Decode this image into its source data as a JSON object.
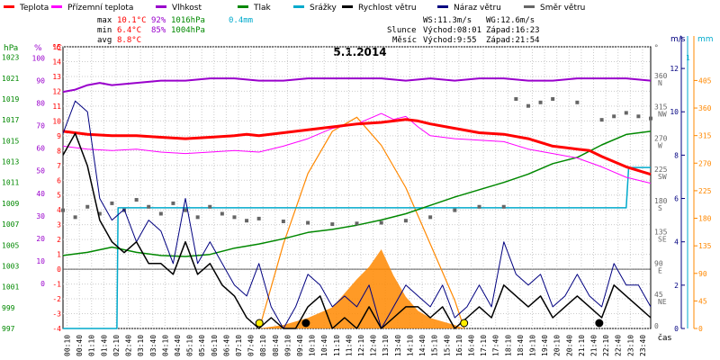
{
  "chart_data": {
    "type": "line",
    "title": "5.1.2014",
    "legend": [
      {
        "label": "Teplota",
        "color": "#ff0000"
      },
      {
        "label": "Přízemní teplota",
        "color": "#ff00ff"
      },
      {
        "label": "Vlhkost",
        "color": "#9900cc"
      },
      {
        "label": "Tlak",
        "color": "#008800"
      },
      {
        "label": "Srážky",
        "color": "#00aacc"
      },
      {
        "label": "Rychlost větru",
        "color": "#000000"
      },
      {
        "label": "Náraz větru",
        "color": "#000080"
      },
      {
        "label": "Směr větru",
        "color": "#666666"
      }
    ],
    "stats": {
      "max": {
        "label": "max",
        "temp": "10.1°C",
        "hum": "92%",
        "press": "1016hPa",
        "rain": "0.4mm"
      },
      "min": {
        "label": "min",
        "temp": "6.4°C",
        "hum": "85%",
        "press": "1004hPa"
      },
      "avg": {
        "label": "avg",
        "temp": "8.8°C"
      }
    },
    "info": {
      "ws": "WS:11.3m/s",
      "wg": "WG:12.6m/s",
      "sun_label": "Slunce",
      "sun_rise": "Východ:08:01",
      "sun_set": "Západ:16:23",
      "moon_label": "Měsíc",
      "moon_rise": "Východ:9:55",
      "moon_set": "Západ:21:54"
    },
    "axis_titles": {
      "hpa": "hPa",
      "pct": "%",
      "degc": "°C",
      "dir": "°",
      "ms": "m/s",
      "mm": "mm",
      "time": "čas"
    },
    "x_ticks": [
      "00:10",
      "00:40",
      "01:10",
      "01:40",
      "02:10",
      "02:40",
      "03:10",
      "03:40",
      "04:10",
      "04:40",
      "05:10",
      "05:40",
      "06:10",
      "06:40",
      "07:10",
      "07:40",
      "08:10",
      "08:40",
      "09:10",
      "09:40",
      "10:10",
      "10:40",
      "11:10",
      "11:40",
      "12:10",
      "12:40",
      "13:10",
      "13:40",
      "14:10",
      "14:40",
      "15:10",
      "15:40",
      "16:10",
      "16:40",
      "17:10",
      "17:40",
      "18:10",
      "18:40",
      "19:10",
      "19:40",
      "20:10",
      "20:40",
      "21:10",
      "21:40",
      "22:10",
      "22:40",
      "23:10",
      "23:40"
    ],
    "y_pressure_ticks": [
      "1023",
      "1021",
      "1019",
      "1017",
      "1015",
      "1013",
      "1011",
      "1009",
      "1007",
      "1005",
      "1003",
      "1001",
      "999",
      "997"
    ],
    "y_humidity_ticks": [
      "100",
      "90",
      "80",
      "70",
      "60",
      "50",
      "40",
      "30",
      "20",
      "10",
      "0"
    ],
    "y_temperature_ticks": [
      "15",
      "14",
      "13",
      "12",
      "11",
      "10",
      "9",
      "8",
      "7",
      "6",
      "5",
      "4",
      "3",
      "2",
      "1",
      "0",
      "-1",
      "-2",
      "-3",
      "-4"
    ],
    "y_direction_ticks": [
      {
        "deg": "360",
        "dir": "N"
      },
      {
        "deg": "315",
        "dir": "NW"
      },
      {
        "deg": "270",
        "dir": "W"
      },
      {
        "deg": "225",
        "dir": "SW"
      },
      {
        "deg": "180",
        "dir": "S"
      },
      {
        "deg": "135",
        "dir": "SE"
      },
      {
        "deg": "90",
        "dir": "E"
      },
      {
        "deg": "45",
        "dir": "NE"
      },
      {
        "deg": "0",
        "dir": ""
      }
    ],
    "y_wind_ticks": [
      "12",
      "10",
      "8",
      "6",
      "4",
      "2",
      "0"
    ],
    "y_rain_top": "1",
    "y_rain_ticks": [
      "405",
      "360",
      "315",
      "270",
      "225",
      "180",
      "135",
      "90",
      "45",
      "0"
    ],
    "ylim_temperature": [
      -4,
      15
    ],
    "ylim_pressure": [
      997,
      1024
    ],
    "ylim_wind": [
      0,
      13
    ],
    "ylim_direction": [
      0,
      405
    ],
    "series": {
      "temperature": [
        [
          0,
          9.3
        ],
        [
          1,
          9.1
        ],
        [
          2,
          9.0
        ],
        [
          3,
          9.0
        ],
        [
          4,
          8.9
        ],
        [
          5,
          8.8
        ],
        [
          6,
          8.9
        ],
        [
          7,
          9.0
        ],
        [
          7.5,
          9.1
        ],
        [
          8,
          9.0
        ],
        [
          9,
          9.2
        ],
        [
          10,
          9.4
        ],
        [
          11,
          9.6
        ],
        [
          12,
          9.8
        ],
        [
          13,
          9.9
        ],
        [
          13.5,
          10.0
        ],
        [
          14,
          10.1
        ],
        [
          14.5,
          10.0
        ],
        [
          15,
          9.8
        ],
        [
          16,
          9.5
        ],
        [
          17,
          9.2
        ],
        [
          18,
          9.1
        ],
        [
          19,
          8.8
        ],
        [
          20,
          8.3
        ],
        [
          20.5,
          8.2
        ],
        [
          21,
          8.1
        ],
        [
          21.5,
          8.0
        ],
        [
          22,
          7.6
        ],
        [
          23,
          6.9
        ],
        [
          24,
          6.4
        ]
      ],
      "ground_temperature": [
        [
          0,
          8.3
        ],
        [
          1,
          8.1
        ],
        [
          2,
          8.0
        ],
        [
          3,
          8.1
        ],
        [
          4,
          7.9
        ],
        [
          5,
          7.8
        ],
        [
          6,
          7.9
        ],
        [
          7,
          8.0
        ],
        [
          8,
          7.9
        ],
        [
          9,
          8.3
        ],
        [
          10,
          8.8
        ],
        [
          11,
          9.5
        ],
        [
          12,
          9.8
        ],
        [
          13,
          10.5
        ],
        [
          13.5,
          10.1
        ],
        [
          14,
          10.3
        ],
        [
          14.5,
          9.6
        ],
        [
          15,
          9.0
        ],
        [
          16,
          8.8
        ],
        [
          17,
          8.7
        ],
        [
          18,
          8.6
        ],
        [
          19,
          8.1
        ],
        [
          20,
          7.8
        ],
        [
          21,
          7.5
        ],
        [
          22,
          6.9
        ],
        [
          23,
          6.2
        ],
        [
          24,
          5.8
        ]
      ],
      "humidity": [
        [
          0,
          85
        ],
        [
          0.5,
          86
        ],
        [
          1,
          88
        ],
        [
          1.5,
          89
        ],
        [
          2,
          88
        ],
        [
          3,
          89
        ],
        [
          4,
          90
        ],
        [
          5,
          90
        ],
        [
          6,
          91
        ],
        [
          7,
          91
        ],
        [
          8,
          90
        ],
        [
          9,
          90
        ],
        [
          10,
          91
        ],
        [
          11,
          91
        ],
        [
          12,
          91
        ],
        [
          13,
          91
        ],
        [
          14,
          90
        ],
        [
          15,
          91
        ],
        [
          16,
          90
        ],
        [
          17,
          91
        ],
        [
          18,
          91
        ],
        [
          19,
          90
        ],
        [
          20,
          90
        ],
        [
          21,
          91
        ],
        [
          22,
          91
        ],
        [
          23,
          91
        ],
        [
          24,
          90
        ]
      ],
      "pressure": [
        [
          0,
          1004
        ],
        [
          1,
          1004.3
        ],
        [
          2,
          1004.8
        ],
        [
          3,
          1004.3
        ],
        [
          4,
          1004.0
        ],
        [
          5,
          1003.9
        ],
        [
          6,
          1004.1
        ],
        [
          7,
          1004.7
        ],
        [
          8,
          1005.1
        ],
        [
          9,
          1005.6
        ],
        [
          10,
          1006.2
        ],
        [
          11,
          1006.5
        ],
        [
          12,
          1006.9
        ],
        [
          13,
          1007.4
        ],
        [
          14,
          1008.0
        ],
        [
          15,
          1008.8
        ],
        [
          16,
          1009.6
        ],
        [
          17,
          1010.3
        ],
        [
          18,
          1011.0
        ],
        [
          19,
          1011.8
        ],
        [
          20,
          1012.8
        ],
        [
          21,
          1013.4
        ],
        [
          22,
          1014.6
        ],
        [
          23,
          1015.6
        ],
        [
          24,
          1015.9
        ]
      ],
      "rain_total": [
        [
          0,
          0
        ],
        [
          2.2,
          0
        ],
        [
          2.25,
          0.3
        ],
        [
          23,
          0.3
        ],
        [
          23.1,
          0.4
        ],
        [
          24,
          0.4
        ]
      ],
      "wind_speed": [
        [
          0,
          8
        ],
        [
          0.5,
          9
        ],
        [
          1,
          7.5
        ],
        [
          1.5,
          5
        ],
        [
          2,
          4
        ],
        [
          2.5,
          3.5
        ],
        [
          3,
          4
        ],
        [
          3.5,
          3
        ],
        [
          4,
          3
        ],
        [
          4.5,
          2.5
        ],
        [
          5,
          4
        ],
        [
          5.5,
          2.5
        ],
        [
          6,
          3
        ],
        [
          6.5,
          2
        ],
        [
          7,
          1.5
        ],
        [
          7.5,
          0.5
        ],
        [
          8,
          0
        ],
        [
          8.5,
          0.5
        ],
        [
          9,
          0
        ],
        [
          9.5,
          0
        ],
        [
          10,
          1
        ],
        [
          10.5,
          1.5
        ],
        [
          11,
          0
        ],
        [
          11.5,
          0.5
        ],
        [
          12,
          0
        ],
        [
          12.5,
          1
        ],
        [
          13,
          0
        ],
        [
          13.5,
          0.5
        ],
        [
          14,
          1
        ],
        [
          14.5,
          1
        ],
        [
          15,
          0.5
        ],
        [
          15.5,
          1
        ],
        [
          16,
          0
        ],
        [
          16.5,
          0.5
        ],
        [
          17,
          1
        ],
        [
          17.5,
          0.5
        ],
        [
          18,
          2
        ],
        [
          18.5,
          1.5
        ],
        [
          19,
          1
        ],
        [
          19.5,
          1.5
        ],
        [
          20,
          0.5
        ],
        [
          20.5,
          1
        ],
        [
          21,
          1.5
        ],
        [
          21.5,
          1
        ],
        [
          22,
          0.5
        ],
        [
          22.5,
          2
        ],
        [
          23,
          1.5
        ],
        [
          23.5,
          1
        ],
        [
          24,
          0.5
        ]
      ],
      "wind_gust": [
        [
          0,
          9
        ],
        [
          0.5,
          10.5
        ],
        [
          1,
          10
        ],
        [
          1.5,
          6
        ],
        [
          2,
          5
        ],
        [
          2.5,
          5.5
        ],
        [
          3,
          4
        ],
        [
          3.5,
          5
        ],
        [
          4,
          4.5
        ],
        [
          4.5,
          3
        ],
        [
          5,
          6
        ],
        [
          5.5,
          3
        ],
        [
          6,
          4
        ],
        [
          6.5,
          3
        ],
        [
          7,
          2
        ],
        [
          7.5,
          1.5
        ],
        [
          8,
          3
        ],
        [
          8.5,
          1
        ],
        [
          9,
          0
        ],
        [
          9.5,
          1
        ],
        [
          10,
          2.5
        ],
        [
          10.5,
          2
        ],
        [
          11,
          1
        ],
        [
          11.5,
          1.5
        ],
        [
          12,
          1
        ],
        [
          12.5,
          2
        ],
        [
          13,
          0
        ],
        [
          13.5,
          1
        ],
        [
          14,
          2
        ],
        [
          14.5,
          1.5
        ],
        [
          15,
          1
        ],
        [
          15.5,
          2
        ],
        [
          16,
          0.5
        ],
        [
          16.5,
          1
        ],
        [
          17,
          2
        ],
        [
          17.5,
          1
        ],
        [
          18,
          4
        ],
        [
          18.5,
          2.5
        ],
        [
          19,
          2
        ],
        [
          19.5,
          2.5
        ],
        [
          20,
          1
        ],
        [
          20.5,
          1.5
        ],
        [
          21,
          2.5
        ],
        [
          21.5,
          1.5
        ],
        [
          22,
          1
        ],
        [
          22.5,
          3
        ],
        [
          23,
          2
        ],
        [
          23.5,
          2
        ],
        [
          24,
          1
        ]
      ],
      "wind_direction": [
        [
          0,
          170
        ],
        [
          0.5,
          160
        ],
        [
          1,
          175
        ],
        [
          1.5,
          165
        ],
        [
          2,
          180
        ],
        [
          2.5,
          170
        ],
        [
          3,
          185
        ],
        [
          3.5,
          175
        ],
        [
          4,
          165
        ],
        [
          4.5,
          180
        ],
        [
          5,
          170
        ],
        [
          5.5,
          160
        ],
        [
          6,
          175
        ],
        [
          6.5,
          165
        ],
        [
          7,
          160
        ],
        [
          7.5,
          155
        ],
        [
          8,
          158
        ],
        [
          9,
          154
        ],
        [
          10,
          152
        ],
        [
          11,
          150
        ],
        [
          12,
          151
        ],
        [
          13,
          152
        ],
        [
          14,
          155
        ],
        [
          15,
          160
        ],
        [
          16,
          170
        ],
        [
          17,
          175
        ],
        [
          18,
          175
        ],
        [
          18.5,
          330
        ],
        [
          19,
          320
        ],
        [
          19.5,
          325
        ],
        [
          20,
          330
        ],
        [
          21,
          325
        ],
        [
          22,
          300
        ],
        [
          22.5,
          305
        ],
        [
          23,
          310
        ],
        [
          23.5,
          305
        ],
        [
          24,
          302
        ]
      ],
      "sun_elevation": [
        [
          8.02,
          0
        ],
        [
          9,
          60
        ],
        [
          10,
          110
        ],
        [
          11,
          140
        ],
        [
          12,
          150
        ],
        [
          13,
          130
        ],
        [
          14,
          100
        ],
        [
          15,
          60
        ],
        [
          16,
          20
        ],
        [
          16.38,
          0
        ]
      ],
      "radiation": [
        [
          8,
          0
        ],
        [
          9,
          2
        ],
        [
          10,
          6
        ],
        [
          11,
          12
        ],
        [
          11.5,
          20
        ],
        [
          12,
          28
        ],
        [
          12.5,
          35
        ],
        [
          13,
          45
        ],
        [
          13.5,
          30
        ],
        [
          14,
          18
        ],
        [
          14.5,
          10
        ],
        [
          15,
          6
        ],
        [
          15.5,
          4
        ],
        [
          16,
          2
        ],
        [
          16.4,
          0
        ]
      ]
    },
    "markers": {
      "sun_rise": 8.02,
      "sun_set": 16.38,
      "moon_rise": 9.92,
      "moon_set": 21.9
    }
  }
}
